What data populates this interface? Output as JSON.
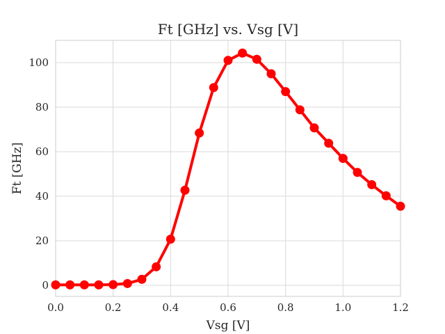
{
  "chart_data": {
    "type": "line",
    "title": "Ft [GHz] vs. Vsg [V]",
    "xlabel": "Vsg [V]",
    "ylabel": "Ft [GHz]",
    "xlim": [
      0.0,
      1.2
    ],
    "ylim": [
      -5,
      110
    ],
    "xticks": [
      0.0,
      0.2,
      0.4,
      0.6,
      0.8,
      1.0,
      1.2
    ],
    "xtick_labels": [
      "0.0",
      "0.2",
      "0.4",
      "0.6",
      "0.8",
      "1.0",
      "1.2"
    ],
    "yticks": [
      0,
      20,
      40,
      60,
      80,
      100
    ],
    "ytick_labels": [
      "0",
      "20",
      "40",
      "60",
      "80",
      "100"
    ],
    "grid": true,
    "color": "#ff0000",
    "series": [
      {
        "x": [
          0.0,
          0.05,
          0.1,
          0.15,
          0.2,
          0.25,
          0.3,
          0.35,
          0.4,
          0.45,
          0.5,
          0.55,
          0.6,
          0.65,
          0.7,
          0.75,
          0.8,
          0.85,
          0.9,
          0.95,
          1.0,
          1.05,
          1.1,
          1.15,
          1.2
        ],
        "values": [
          0.2,
          0.2,
          0.2,
          0.2,
          0.3,
          0.8,
          2.7,
          8.3,
          20.7,
          42.7,
          68.4,
          88.8,
          101.0,
          104.3,
          101.5,
          95.0,
          87.0,
          78.8,
          70.7,
          63.8,
          57.0,
          50.7,
          45.2,
          40.2,
          35.5
        ]
      }
    ]
  }
}
